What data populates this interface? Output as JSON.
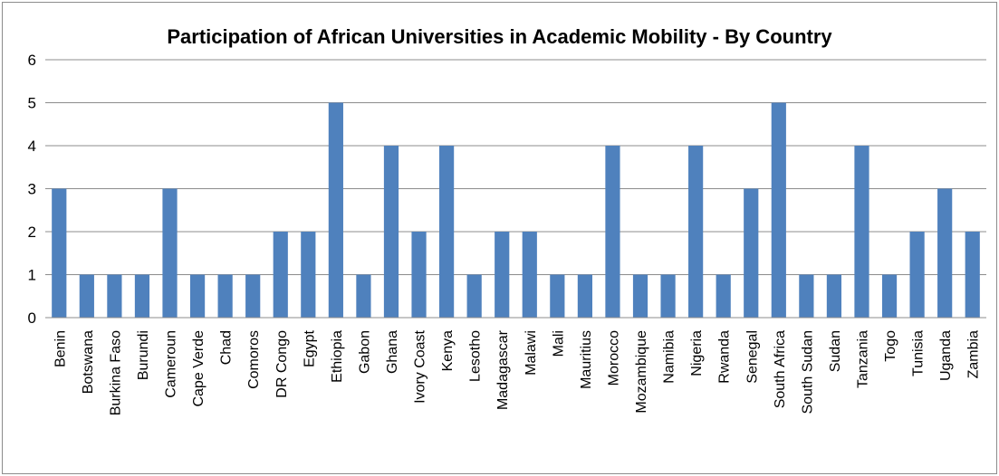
{
  "chart_data": {
    "type": "bar",
    "title": "Participation of African Universities in Academic Mobility - By Country",
    "xlabel": "",
    "ylabel": "",
    "ylim": [
      0,
      6
    ],
    "yticks": [
      0,
      1,
      2,
      3,
      4,
      5,
      6
    ],
    "grid": true,
    "legend": "none",
    "bar_color": "#4F81BD",
    "categories": [
      "Benin",
      "Botswana",
      "Burkina Faso",
      "Burundi",
      "Cameroun",
      "Cape Verde",
      "Chad",
      "Comoros",
      "DR Congo",
      "Egypt",
      "Ethiopia",
      "Gabon",
      "Ghana",
      "Ivory Coast",
      "Kenya",
      "Lesotho",
      "Madagascar",
      "Malawi",
      "Mali",
      "Mauritius",
      "Morocco",
      "Mozambique",
      "Namibia",
      "Nigeria",
      "Rwanda",
      "Senegal",
      "South Africa",
      "South Sudan",
      "Sudan",
      "Tanzania",
      "Togo",
      "Tunisia",
      "Uganda",
      "Zambia"
    ],
    "values": [
      3,
      1,
      1,
      1,
      3,
      1,
      1,
      1,
      2,
      2,
      5,
      1,
      4,
      2,
      4,
      1,
      2,
      2,
      1,
      1,
      4,
      1,
      1,
      4,
      1,
      3,
      5,
      1,
      1,
      4,
      1,
      2,
      3,
      2
    ]
  }
}
